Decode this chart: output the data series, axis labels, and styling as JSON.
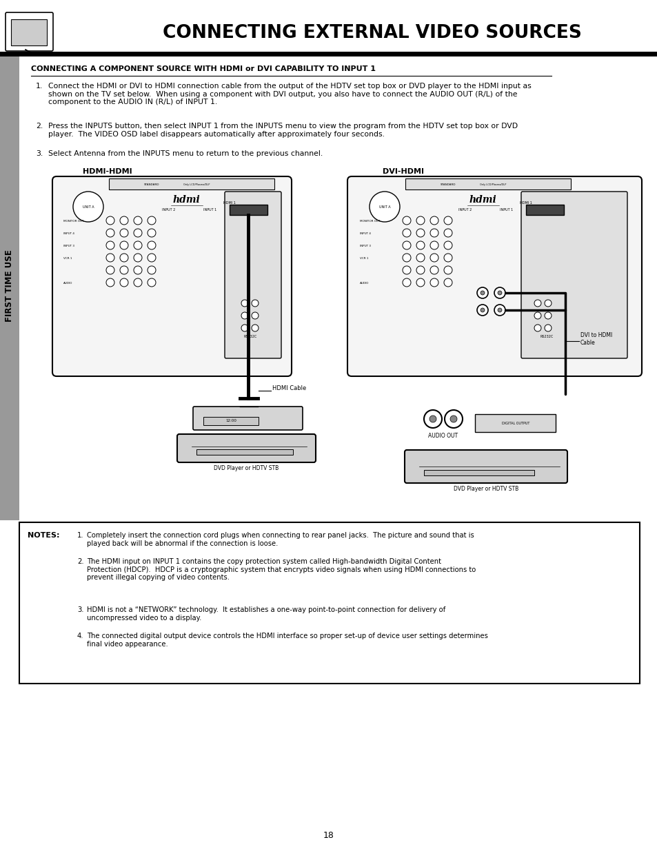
{
  "page_title": "CONNECTING EXTERNAL VIDEO SOURCES",
  "section_title": "CONNECTING A COMPONENT SOURCE WITH HDMI or DVI CAPABILITY TO INPUT 1",
  "step1": "Connect the HDMI or DVI to HDMI connection cable from the output of the HDTV set top box or DVD player to the HDMI input as\nshown on the TV set below.  When using a component with DVI output, you also have to connect the AUDIO OUT (R/L) of the\ncomponent to the AUDIO IN (R/L) of INPUT 1.",
  "step2": "Press the INPUTS button, then select INPUT 1 from the INPUTS menu to view the program from the HDTV set top box or DVD\nplayer.  The VIDEO OSD label disappears automatically after approximately four seconds.",
  "step3": "Select Antenna from the INPUTS menu to return to the previous channel.",
  "diagram_left_title": "HDMI-HDMI",
  "diagram_right_title": "DVI-HDMI",
  "diagram_left_label": "HDMI Cable",
  "diagram_left_bottom": "DVD Player or HDTV STB",
  "diagram_right_label1": "DVI to HDMI\nCable",
  "diagram_right_label2": "AUDIO OUT",
  "diagram_right_bottom": "DVD Player or HDTV STB",
  "sidebar_text": "FIRST TIME USE",
  "page_number": "18",
  "note_title": "NOTES:",
  "note1": "Completely insert the connection cord plugs when connecting to rear panel jacks.  The picture and sound that is\nplayed back will be abnormal if the connection is loose.",
  "note2": "The HDMI input on INPUT 1 contains the copy protection system called High-bandwidth Digital Content\nProtection (HDCP).  HDCP is a cryptographic system that encrypts video signals when using HDMI connections to\nprevent illegal copying of video contents.",
  "note3": "HDMI is not a “NETWORK” technology.  It establishes a one-way point-to-point connection for delivery of\nuncompressed video to a display.",
  "note4": "The connected digital output device controls the HDMI interface so proper set-up of device user settings determines\nfinal video appearance.",
  "bg_color": "#ffffff",
  "text_color": "#000000",
  "border_color": "#000000"
}
